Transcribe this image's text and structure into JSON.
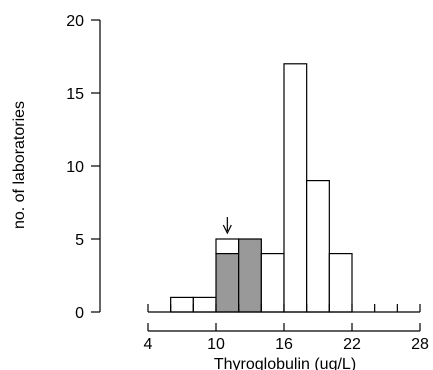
{
  "chart_data": {
    "type": "bar",
    "xlabel": "Thyroglobulin (ug/L)",
    "ylabel": "no. of laboratories",
    "xlim": [
      4,
      28
    ],
    "ylim": [
      0,
      20
    ],
    "x_ticks": [
      4,
      10,
      16,
      22,
      28
    ],
    "y_ticks": [
      0,
      5,
      10,
      15,
      20
    ],
    "bin_width": 2,
    "bins": [
      {
        "start": 6,
        "end": 8,
        "total": 1,
        "shaded": 0
      },
      {
        "start": 8,
        "end": 10,
        "total": 1,
        "shaded": 0
      },
      {
        "start": 10,
        "end": 12,
        "total": 5,
        "shaded": 4
      },
      {
        "start": 12,
        "end": 14,
        "total": 5,
        "shaded": 5
      },
      {
        "start": 14,
        "end": 16,
        "total": 4,
        "shaded": 0
      },
      {
        "start": 16,
        "end": 18,
        "total": 17,
        "shaded": 0
      },
      {
        "start": 18,
        "end": 20,
        "total": 9,
        "shaded": 0
      },
      {
        "start": 20,
        "end": 22,
        "total": 4,
        "shaded": 0
      }
    ],
    "zero_baseline_range": [
      4,
      28
    ],
    "arrow_x": 11,
    "colors": {
      "shaded": "#999999",
      "unshaded": "#ffffff"
    }
  }
}
